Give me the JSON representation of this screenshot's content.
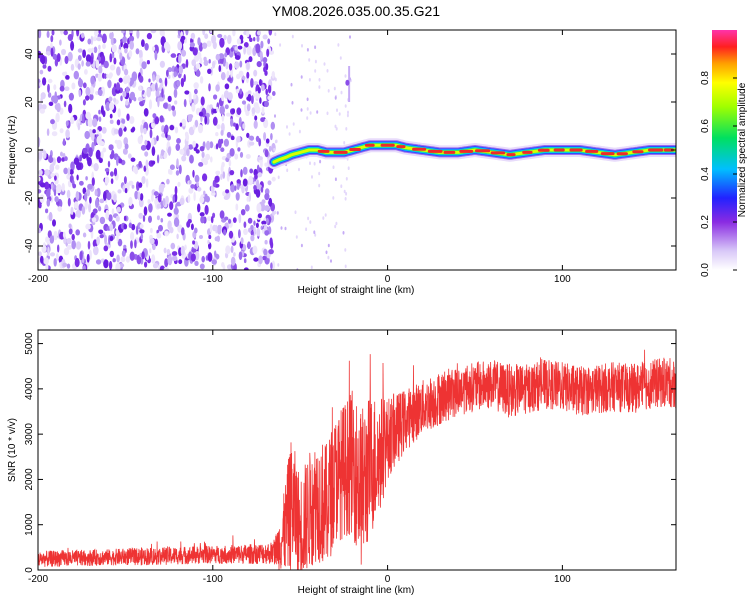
{
  "chart_data": [
    {
      "type": "heatmap",
      "title": "YM08.2026.035.00.35.G21",
      "xlabel": "Height of straight line (km)",
      "ylabel": "Frequency (Hz)",
      "xlim": [
        -200,
        165
      ],
      "ylim": [
        -50,
        50
      ],
      "xticks": [
        -200,
        -100,
        0,
        100
      ],
      "xtick_labels": [
        "-200",
        "-100",
        "0",
        "100"
      ],
      "yticks": [
        -40,
        -20,
        0,
        20,
        40
      ],
      "ytick_labels": [
        "-40",
        "-20",
        "0",
        "20",
        "40"
      ],
      "noise_region_x": [
        -200,
        -65
      ],
      "transition_region_x": [
        -65,
        -20
      ],
      "signal_track": {
        "x": [
          -65,
          -62,
          -58,
          -55,
          -50,
          -45,
          -40,
          -35,
          -30,
          -25,
          -20,
          -15,
          -10,
          -5,
          0,
          5,
          10,
          20,
          30,
          40,
          50,
          60,
          70,
          80,
          90,
          100,
          110,
          120,
          130,
          140,
          150,
          160,
          165
        ],
        "freq": [
          -5,
          -4,
          -3,
          -2,
          -1,
          0,
          0,
          -1,
          -1,
          -1,
          0,
          1,
          2,
          2,
          2,
          2,
          1,
          0,
          -1,
          -1,
          0,
          -1,
          -2,
          -1,
          0,
          0,
          0,
          -1,
          -2,
          -1,
          0,
          0,
          0
        ]
      },
      "colorbar": {
        "label": "Normalized spectral amplitude",
        "range": [
          0,
          1
        ],
        "ticks": [
          0.0,
          0.2,
          0.4,
          0.6,
          0.8
        ],
        "tick_labels": [
          "0.0",
          "0.2",
          "0.4",
          "0.6",
          "0.8"
        ]
      }
    },
    {
      "type": "line",
      "xlabel": "Height of straight line (km)",
      "ylabel": "SNR (10 * v/v)",
      "xlim": [
        -200,
        165
      ],
      "ylim": [
        0,
        5300
      ],
      "xticks": [
        -200,
        -100,
        0,
        100
      ],
      "xtick_labels": [
        "-200",
        "-100",
        "0",
        "100"
      ],
      "yticks": [
        0,
        1000,
        2000,
        3000,
        4000,
        5000
      ],
      "ytick_labels": [
        "0",
        "1000",
        "2000",
        "3000",
        "4000",
        "5000"
      ],
      "series": [
        {
          "name": "SNR",
          "color": "#ee3333",
          "x": [
            -200,
            -180,
            -160,
            -140,
            -120,
            -100,
            -80,
            -65,
            -60,
            -55,
            -50,
            -45,
            -40,
            -35,
            -30,
            -25,
            -20,
            -15,
            -10,
            -5,
            0,
            10,
            20,
            30,
            40,
            50,
            60,
            70,
            80,
            90,
            100,
            110,
            120,
            130,
            140,
            150,
            160,
            165
          ],
          "mean": [
            240,
            260,
            280,
            300,
            320,
            340,
            350,
            380,
            700,
            1500,
            900,
            1300,
            1600,
            1400,
            2000,
            2200,
            2400,
            1800,
            2300,
            2500,
            2900,
            3300,
            3600,
            3800,
            3950,
            4050,
            4100,
            3950,
            4000,
            4100,
            4050,
            3950,
            4000,
            4050,
            4000,
            4100,
            4150,
            4100
          ],
          "spread": [
            180,
            180,
            180,
            200,
            200,
            200,
            220,
            250,
            800,
            1500,
            1200,
            1300,
            1400,
            1400,
            1400,
            1500,
            1600,
            1800,
            1600,
            1400,
            900,
            700,
            600,
            600,
            550,
            550,
            550,
            600,
            550,
            550,
            550,
            550,
            550,
            550,
            550,
            550,
            550,
            550
          ]
        }
      ]
    }
  ]
}
